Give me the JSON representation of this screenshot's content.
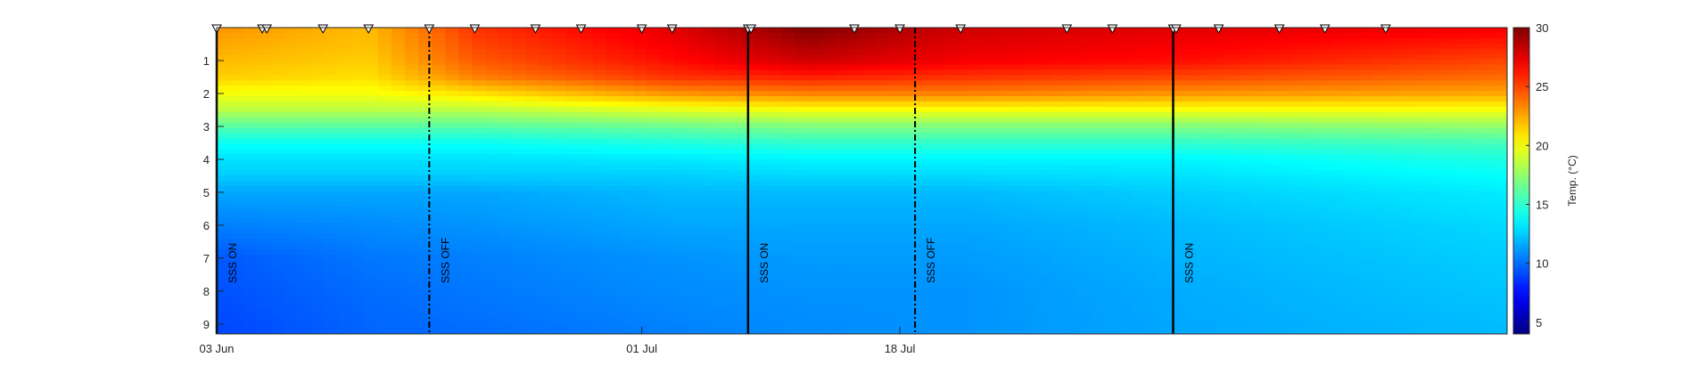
{
  "chart_data": {
    "type": "heatmap",
    "title": "",
    "xlabel": "",
    "ylabel": "",
    "x_axis": {
      "type": "date",
      "start": "2023-06-03",
      "end": "2023-08-27",
      "ticks": [
        {
          "date": "2023-06-03",
          "label": "03 Jun"
        },
        {
          "date": "2023-07-01",
          "label": "01 Jul"
        },
        {
          "date": "2023-07-18",
          "label": "18 Jul"
        }
      ]
    },
    "y_axis": {
      "range": [
        0,
        9.3
      ],
      "reversed": true,
      "ticks": [
        1,
        2,
        3,
        4,
        5,
        6,
        7,
        8,
        9
      ]
    },
    "colorbar": {
      "title": "Temp. (°C)",
      "range": [
        4,
        30
      ],
      "ticks": [
        5,
        10,
        15,
        20,
        25,
        30
      ],
      "colormap": "jet"
    },
    "events": [
      {
        "date": "2023-06-03",
        "label": "SSS ON",
        "style": "solid"
      },
      {
        "date": "2023-06-17",
        "label": "SSS OFF",
        "style": "dashdot"
      },
      {
        "date": "2023-07-08",
        "label": "SSS ON",
        "style": "solid"
      },
      {
        "date": "2023-07-19",
        "label": "SSS OFF",
        "style": "dashdot"
      },
      {
        "date": "2023-08-05",
        "label": "SSS ON",
        "style": "solid"
      }
    ],
    "profile_dates": [
      "2023-06-03",
      "2023-06-06",
      "2023-06-06.3",
      "2023-06-10",
      "2023-06-13",
      "2023-06-17",
      "2023-06-20",
      "2023-06-24",
      "2023-06-27",
      "2023-07-01",
      "2023-07-03",
      "2023-07-08",
      "2023-07-08.2",
      "2023-07-15",
      "2023-07-18",
      "2023-07-22",
      "2023-07-29",
      "2023-08-01",
      "2023-08-05",
      "2023-08-05.2",
      "2023-08-08",
      "2023-08-12",
      "2023-08-15",
      "2023-08-19"
    ],
    "temperature_profiles": {
      "depths": [
        0,
        0.5,
        1,
        1.5,
        2,
        2.5,
        3,
        3.5,
        4,
        4.5,
        5,
        6,
        7,
        8,
        9.3
      ],
      "series": [
        {
          "date": "2023-06-03",
          "values": [
            23,
            22.5,
            22,
            21.5,
            20,
            18.5,
            16,
            14,
            13,
            12.5,
            11.5,
            10.5,
            9.5,
            9.3,
            9
          ]
        },
        {
          "date": "2023-06-13",
          "values": [
            22,
            21.8,
            21.5,
            21,
            20,
            18.5,
            16,
            14,
            13,
            12.5,
            11.5,
            10.8,
            10.3,
            10,
            9.8
          ]
        },
        {
          "date": "2023-06-20",
          "values": [
            25.5,
            25,
            24.5,
            23.5,
            21,
            18.5,
            16,
            14,
            13,
            12.5,
            11.5,
            11,
            10.5,
            10.3,
            10
          ]
        },
        {
          "date": "2023-07-03",
          "values": [
            27.5,
            27,
            26.5,
            25.5,
            23,
            19.5,
            16.5,
            14.5,
            13.2,
            12.5,
            12,
            11.5,
            11,
            10.8,
            10.5
          ]
        },
        {
          "date": "2023-07-12",
          "values": [
            30,
            29,
            28,
            26,
            23.5,
            20,
            17,
            15,
            13.5,
            12.8,
            12,
            11.5,
            11.2,
            11,
            10.8
          ]
        },
        {
          "date": "2023-07-22",
          "values": [
            28,
            27.5,
            27,
            25.5,
            23.5,
            20,
            17,
            15,
            13.5,
            12.8,
            12,
            11.5,
            11.2,
            11,
            11
          ]
        },
        {
          "date": "2023-08-05",
          "values": [
            27.5,
            27,
            26.5,
            25,
            23,
            20,
            17,
            15,
            13.5,
            13,
            12.5,
            12,
            11.8,
            11.6,
            11.5
          ]
        },
        {
          "date": "2023-08-27",
          "values": [
            27,
            26,
            25,
            24,
            22.5,
            20,
            17.5,
            15.5,
            14.5,
            13.8,
            13.3,
            12.8,
            12.5,
            12.3,
            12
          ]
        }
      ]
    },
    "colors": {
      "axis": "#262626",
      "marker_fill": "#ffffff",
      "event_line": "#000000"
    }
  }
}
